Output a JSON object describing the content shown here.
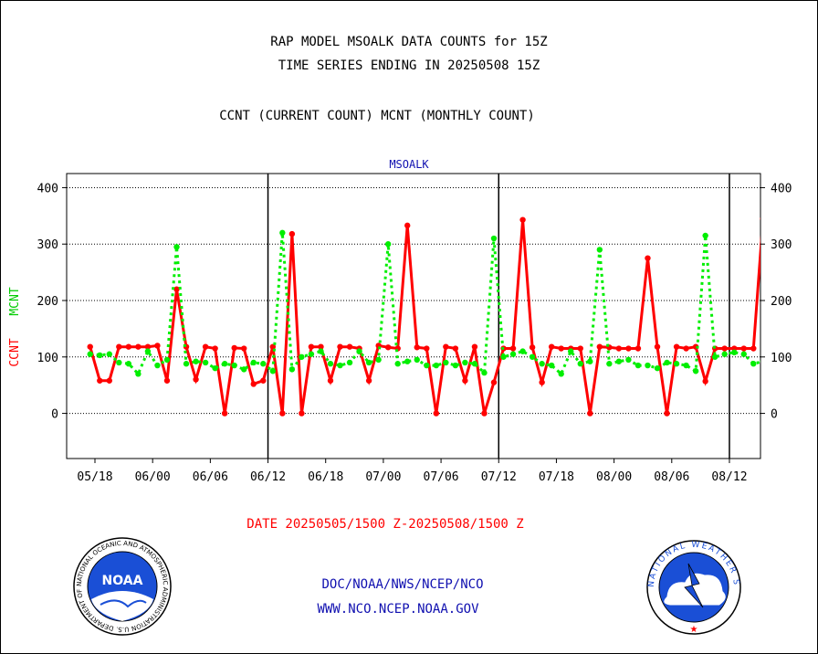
{
  "header": {
    "title_line1": "RAP MODEL MSOALK DATA COUNTS for 15Z",
    "title_line2": "TIME SERIES ENDING IN 20250508 15Z",
    "subtitle": "CCNT (CURRENT COUNT) MCNT (MONTHLY COUNT)"
  },
  "chart_data": {
    "type": "line",
    "title": "MSOALK",
    "ylabel_ccnt": "CCNT",
    "ylabel_mcnt": "MCNT",
    "xlabel": "DATE 20250505/1500 Z-20250508/1500 Z",
    "ylim": [
      -80,
      425
    ],
    "yticks": [
      0,
      100,
      200,
      300,
      400
    ],
    "xticks": [
      "05/18",
      "06/00",
      "06/06",
      "06/12",
      "06/18",
      "07/00",
      "07/06",
      "07/12",
      "07/18",
      "08/00",
      "08/06",
      "08/12"
    ],
    "day_boundaries": [
      "06/12",
      "07/12",
      "08/12"
    ],
    "grid": true,
    "series": [
      {
        "name": "CCNT",
        "color": "#ff0000",
        "style": "solid",
        "x": [
          -0.5,
          0.5,
          1.5,
          2.5,
          3.5,
          4.5,
          5.5,
          6.5,
          7.5,
          8.5,
          9.5,
          10.5,
          11.5,
          12.5,
          13.5,
          14.5,
          15.5,
          16.5,
          17.5,
          18.5,
          19.5,
          20.5,
          21.5,
          22.5,
          23.5,
          24.5,
          25.5,
          26.5,
          27.5,
          28.5,
          29.5,
          30.5,
          31.5,
          32.5,
          33.5,
          34.5,
          35.5,
          36.5,
          37.5,
          38.5,
          39.5,
          40.5,
          41.5,
          42.5,
          43.5,
          44.5,
          45.5,
          46.5,
          47.5,
          48.5,
          49.5,
          50.5,
          51.5,
          52.5,
          53.5,
          54.5,
          55.5,
          56.5,
          57.5,
          58.5,
          59.5,
          60.5,
          61.5,
          62.5,
          63.5,
          64.5,
          65.5,
          66.5,
          67.5,
          68.5,
          69.5,
          70.5,
          71.5,
          72.5
        ],
        "y": [
          118,
          58,
          58,
          118,
          118,
          118,
          118,
          120,
          58,
          220,
          118,
          60,
          118,
          115,
          0,
          116,
          115,
          52,
          58,
          118,
          0,
          318,
          0,
          118,
          118,
          58,
          118,
          118,
          115,
          58,
          120,
          117,
          115,
          333,
          117,
          115,
          0,
          118,
          115,
          58,
          118,
          0,
          55,
          115,
          115,
          343,
          117,
          55,
          118,
          115,
          115,
          115,
          0,
          118,
          117,
          115,
          115,
          115,
          275,
          118,
          0,
          118,
          115,
          118,
          57,
          115,
          115,
          115,
          115,
          115,
          345,
          115,
          115,
          115
        ]
      },
      {
        "name": "MCNT",
        "color": "#00ee00",
        "style": "dotted",
        "x": [
          -0.5,
          0.5,
          1.5,
          2.5,
          3.5,
          4.5,
          5.5,
          6.5,
          7.5,
          8.5,
          9.5,
          10.5,
          11.5,
          12.5,
          13.5,
          14.5,
          15.5,
          16.5,
          17.5,
          18.5,
          19.5,
          20.5,
          21.5,
          22.5,
          23.5,
          24.5,
          25.5,
          26.5,
          27.5,
          28.5,
          29.5,
          30.5,
          31.5,
          32.5,
          33.5,
          34.5,
          35.5,
          36.5,
          37.5,
          38.5,
          39.5,
          40.5,
          41.5,
          42.5,
          43.5,
          44.5,
          45.5,
          46.5,
          47.5,
          48.5,
          49.5,
          50.5,
          51.5,
          52.5,
          53.5,
          54.5,
          55.5,
          56.5,
          57.5,
          58.5,
          59.5,
          60.5,
          61.5,
          62.5,
          63.5,
          64.5,
          65.5,
          66.5,
          67.5,
          68.5,
          69.5,
          70.5,
          71.5,
          72.5
        ],
        "y": [
          105,
          103,
          105,
          90,
          88,
          70,
          110,
          85,
          95,
          295,
          88,
          92,
          90,
          80,
          88,
          85,
          78,
          90,
          88,
          75,
          320,
          78,
          100,
          105,
          110,
          88,
          85,
          90,
          110,
          90,
          95,
          300,
          88,
          92,
          95,
          85,
          85,
          90,
          85,
          90,
          88,
          72,
          310,
          100,
          105,
          110,
          100,
          88,
          85,
          70,
          110,
          88,
          92,
          290,
          88,
          92,
          95,
          85,
          85,
          80,
          90,
          88,
          85,
          75,
          315,
          100,
          105,
          108,
          105,
          88,
          92,
          90,
          85,
          110
        ]
      }
    ]
  },
  "footer": {
    "date_label": "DATE 20250505/1500 Z-20250508/1500 Z",
    "link1": "DOC/NOAA/NWS/NCEP/NCO",
    "link2": "WWW.NCO.NCEP.NOAA.GOV"
  },
  "logos": {
    "noaa_text": "NOAA",
    "noaa_ring": "NATIONAL OCEANIC AND ATMOSPHERIC ADMINISTRATION  U.S. DEPARTMENT OF COMMERCE",
    "nws_ring": "NATIONAL WEATHER SERVICE"
  },
  "colors": {
    "ccnt": "#ff0000",
    "mcnt": "#00ee00",
    "link": "#1010b0",
    "noaa_blue": "#1a4fd6"
  }
}
